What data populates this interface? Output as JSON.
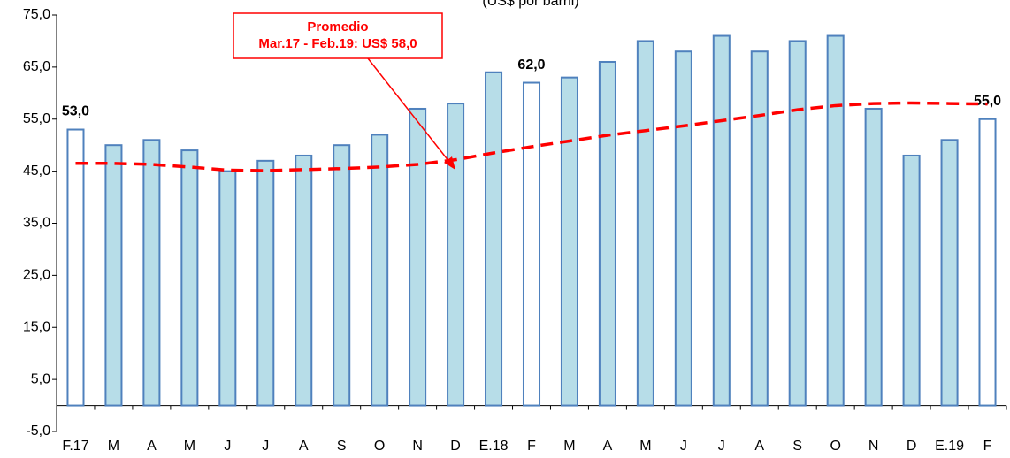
{
  "chart_data": {
    "type": "bar",
    "subtitle": "(US$ por barril)",
    "categories": [
      "F.17",
      "M",
      "A",
      "M",
      "J",
      "J",
      "A",
      "S",
      "O",
      "N",
      "D",
      "E.18",
      "F",
      "M",
      "A",
      "M",
      "J",
      "J",
      "A",
      "S",
      "O",
      "N",
      "D",
      "E.19",
      "F"
    ],
    "series": [
      {
        "type": "bar",
        "edge_color": "#4f81bd",
        "values": [
          53,
          50,
          51,
          49,
          45,
          47,
          48,
          50,
          52,
          57,
          58,
          64,
          62,
          63,
          66,
          70,
          68,
          71,
          68,
          70,
          71,
          57,
          48,
          51,
          55
        ],
        "colors": [
          "#ffffff",
          "#b7dde8",
          "#b7dde8",
          "#b7dde8",
          "#b7dde8",
          "#b7dde8",
          "#b7dde8",
          "#b7dde8",
          "#b7dde8",
          "#b7dde8",
          "#b7dde8",
          "#b7dde8",
          "#ffffff",
          "#b7dde8",
          "#b7dde8",
          "#b7dde8",
          "#b7dde8",
          "#b7dde8",
          "#b7dde8",
          "#b7dde8",
          "#b7dde8",
          "#b7dde8",
          "#b7dde8",
          "#b7dde8",
          "#ffffff"
        ],
        "value_labels": [
          "53,0",
          null,
          null,
          null,
          null,
          null,
          null,
          null,
          null,
          null,
          null,
          null,
          "62,0",
          null,
          null,
          null,
          null,
          null,
          null,
          null,
          null,
          null,
          null,
          null,
          "55,0"
        ]
      },
      {
        "type": "line",
        "color": "#ff0000",
        "dashed": true,
        "values": [
          46.5,
          46.5,
          46.3,
          45.8,
          45.2,
          45.1,
          45.3,
          45.5,
          45.8,
          46.3,
          47.2,
          48.5,
          49.7,
          50.8,
          51.9,
          52.8,
          53.7,
          54.7,
          55.7,
          56.8,
          57.6,
          58.0,
          58.1,
          58.0,
          57.9
        ]
      }
    ],
    "annotation": {
      "lines": [
        "Promedio",
        "Mar.17 - Feb.19: US$ 58,0"
      ],
      "color": "#ff0000"
    },
    "ylim": [
      -5,
      75
    ],
    "yticks": [
      {
        "value": -5,
        "label": "-5,0"
      },
      {
        "value": 5,
        "label": "5,0"
      },
      {
        "value": 15,
        "label": "15,0"
      },
      {
        "value": 25,
        "label": "25,0"
      },
      {
        "value": 35,
        "label": "35,0"
      },
      {
        "value": 45,
        "label": "45,0"
      },
      {
        "value": 55,
        "label": "55,0"
      },
      {
        "value": 65,
        "label": "65,0"
      },
      {
        "value": 75,
        "label": "75,0"
      }
    ],
    "grid": false
  }
}
